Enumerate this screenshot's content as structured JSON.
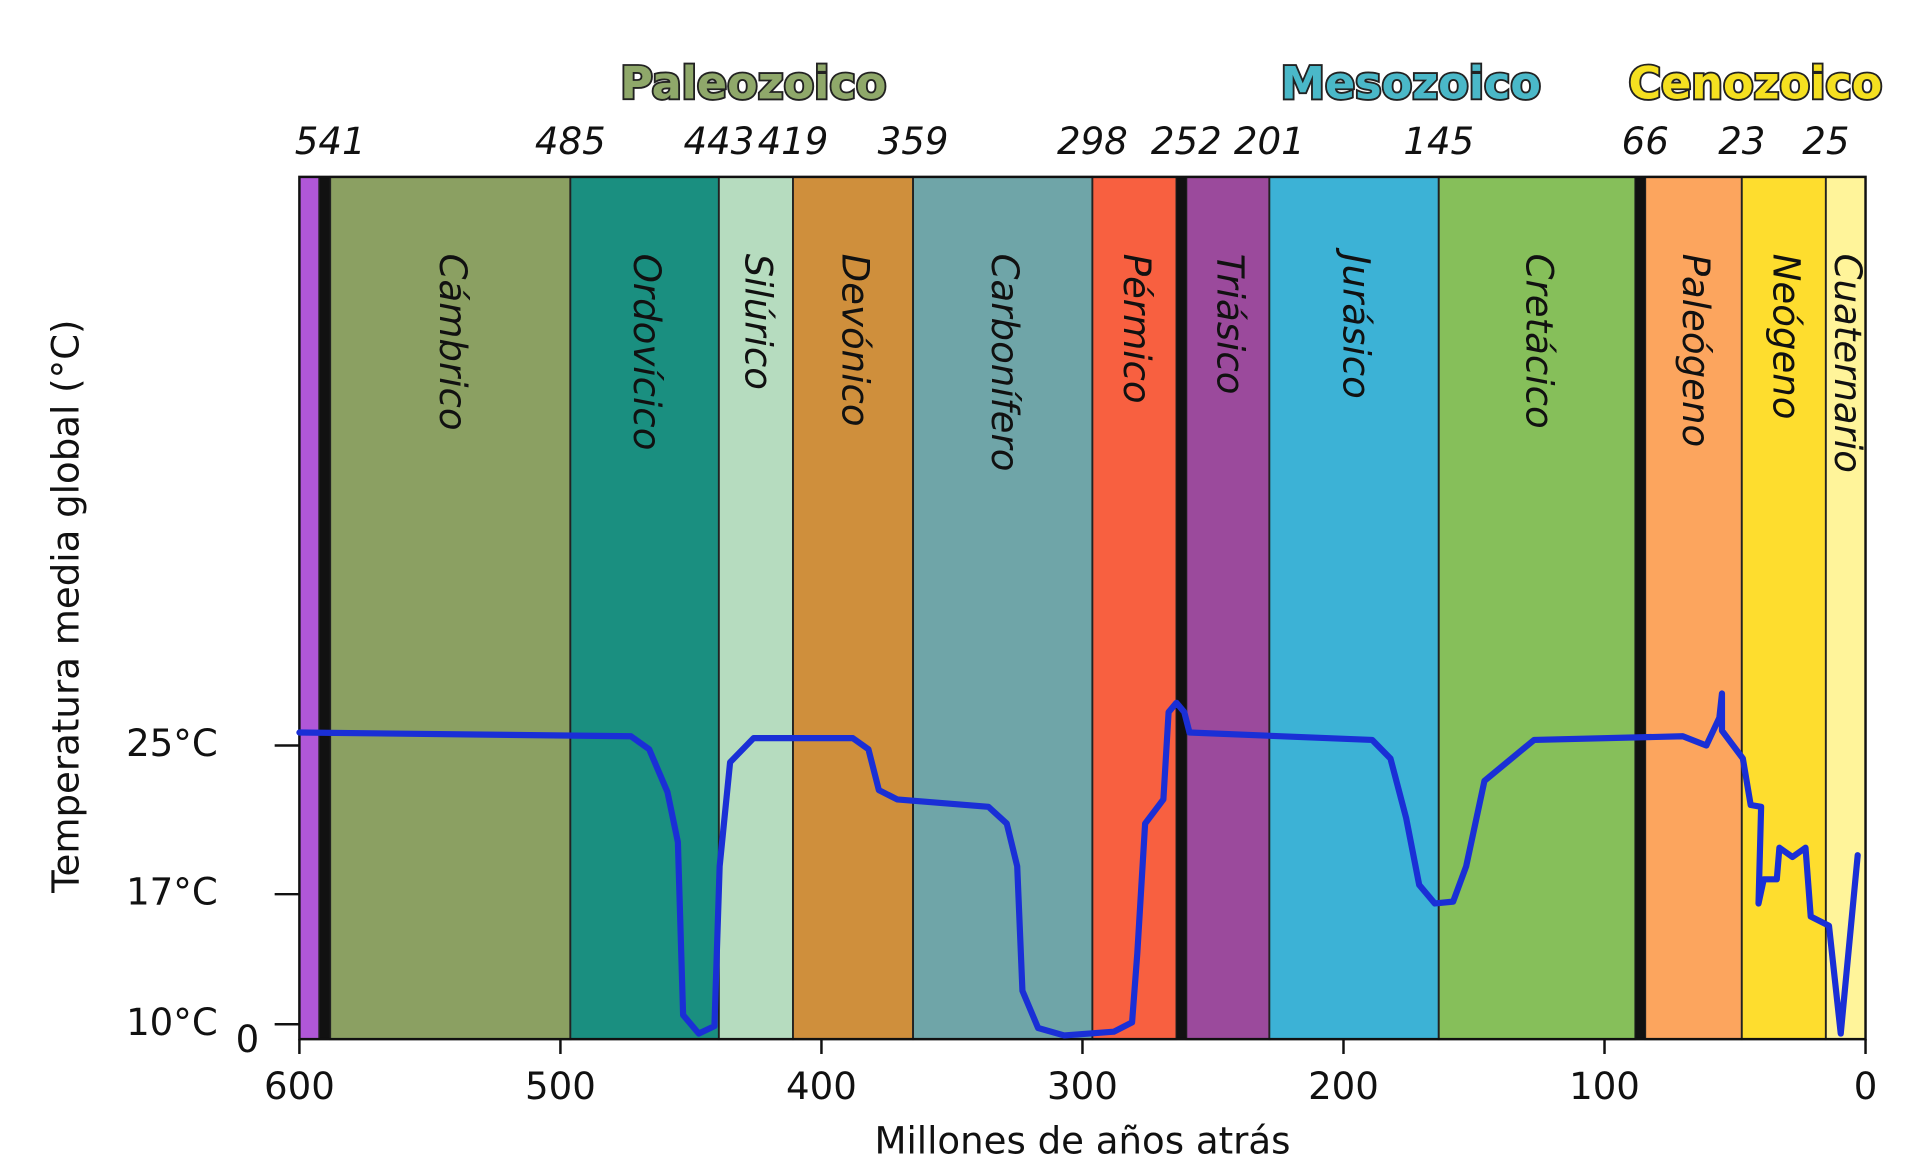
{
  "chart_data": {
    "type": "line",
    "x_label": "Millones de años atrás",
    "y_label": "Temperatura media global (°C)",
    "xlim": [
      600,
      0
    ],
    "ylim": [
      9.2,
      55.6
    ],
    "xticks": [
      600,
      500,
      400,
      300,
      200,
      100,
      0
    ],
    "yticks": [
      {
        "value": 10,
        "label": "10°C"
      },
      {
        "value": 17,
        "label": "17°C"
      },
      {
        "value": 25,
        "label": "25°C"
      }
    ],
    "origin_label": "0",
    "periods": [
      {
        "color": "#b057d8",
        "start": 600,
        "end": 592.4
      },
      {
        "name": "Cámbrico",
        "boundary_label": "541",
        "color": "#8ba062",
        "start": 588.2,
        "end": 496.2
      },
      {
        "name": "Ordovícico",
        "boundary_label": "485",
        "color": "#1a8f80",
        "start": 496.2,
        "end": 439.3
      },
      {
        "name": "Silúrico",
        "boundary_label": "443",
        "color": "#b6dcbf",
        "start": 439.3,
        "end": 410.9
      },
      {
        "name": "Devónico",
        "boundary_label": "419",
        "color": "#cf8f3c",
        "start": 410.9,
        "end": 364.9
      },
      {
        "name": "Carbonífero",
        "boundary_label": "359",
        "color": "#6fa5a8",
        "start": 364.9,
        "end": 296.2
      },
      {
        "name": "Pérmico",
        "boundary_label": "298",
        "color": "#f86040",
        "start": 296.2,
        "end": 264
      },
      {
        "name": "Triásico",
        "boundary_label": "252",
        "color": "#9b4a9c",
        "start": 260.2,
        "end": 228.4
      },
      {
        "name": "Jurásico",
        "boundary_label": "201",
        "color": "#3cb2d6",
        "start": 228.4,
        "end": 163.5
      },
      {
        "name": "Cretácico",
        "boundary_label": "145",
        "color": "#86bf5a",
        "start": 163.5,
        "end": 88.2
      },
      {
        "name": "Paleógeno",
        "boundary_label": "66",
        "color": "#fca55e",
        "start": 84.4,
        "end": 47.4
      },
      {
        "name": "Neógeno",
        "boundary_label": "23",
        "color": "#fedd2e",
        "start": 47.4,
        "end": 15.2
      },
      {
        "name": "Cuaternario",
        "boundary_label": "25",
        "color": "#fff49a",
        "start": 15.2,
        "end": 0
      }
    ],
    "extinctions": {
      "color": "#111111",
      "x": [
        590.3,
        262.1,
        86.3
      ]
    },
    "eras": [
      {
        "name": "Paleozoico",
        "color": "#8fa86a",
        "start": 588.2,
        "end": 264
      },
      {
        "name": "Mesozoico",
        "color": "#4ab8c8",
        "start": 260.2,
        "end": 88.2
      },
      {
        "name": "Cenozoico",
        "color": "#f5e020",
        "start": 84.4,
        "end": 0
      }
    ],
    "series": [
      {
        "color": "#1a2fd6",
        "x": [
          600,
          473,
          466,
          459,
          455,
          453,
          447,
          441,
          439,
          435,
          426,
          388,
          382,
          378,
          371,
          336,
          329,
          325,
          323,
          317,
          307,
          288,
          281,
          279,
          276,
          269,
          267,
          264,
          261,
          259,
          189,
          182,
          176,
          171,
          165,
          158,
          153,
          146,
          127,
          70,
          61,
          56,
          55,
          55,
          47,
          44,
          40,
          41,
          39,
          34,
          33,
          28,
          23,
          21,
          14,
          9.5,
          3
        ],
        "values": [
          25.7,
          25.5,
          24.8,
          22.5,
          19.8,
          10.5,
          9.5,
          9.9,
          18.5,
          24.1,
          25.4,
          25.4,
          24.8,
          22.6,
          22.1,
          21.7,
          20.8,
          18.5,
          11.8,
          9.8,
          9.4,
          9.6,
          10.1,
          13.8,
          20.8,
          22.1,
          26.8,
          27.3,
          26.8,
          25.7,
          25.3,
          24.3,
          21.1,
          17.5,
          16.5,
          16.6,
          18.5,
          23.1,
          25.3,
          25.5,
          25.0,
          26.5,
          27.8,
          25.8,
          24.3,
          21.8,
          21.7,
          16.5,
          17.8,
          17.8,
          19.5,
          19.0,
          19.5,
          15.8,
          15.3,
          9.5,
          19.1
        ]
      }
    ]
  }
}
